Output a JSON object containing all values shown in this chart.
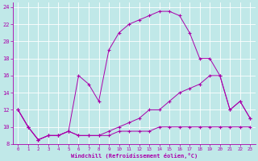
{
  "xlabel": "Windchill (Refroidissement éolien,°C)",
  "bg_color": "#c0e8e8",
  "grid_color": "#a8d8d8",
  "line_color": "#aa00aa",
  "xlim": [
    -0.5,
    23.5
  ],
  "ylim": [
    8,
    24.5
  ],
  "xticks": [
    0,
    1,
    2,
    3,
    4,
    5,
    6,
    7,
    8,
    9,
    10,
    11,
    12,
    13,
    14,
    15,
    16,
    17,
    18,
    19,
    20,
    21,
    22,
    23
  ],
  "yticks": [
    8,
    10,
    12,
    14,
    16,
    18,
    20,
    22,
    24
  ],
  "line1_x": [
    0,
    1,
    2,
    3,
    4,
    5,
    6,
    7,
    8,
    9,
    10,
    11,
    12,
    13,
    14,
    15,
    16,
    17,
    18,
    19,
    20,
    21,
    22,
    23
  ],
  "line1_y": [
    12,
    10,
    8.5,
    9,
    9,
    9.5,
    9,
    9,
    9,
    9,
    9.5,
    9.5,
    9.5,
    9.5,
    10,
    10,
    10,
    10,
    10,
    10,
    10,
    10,
    10,
    10
  ],
  "line2_x": [
    0,
    1,
    2,
    3,
    4,
    5,
    6,
    7,
    8,
    9,
    10,
    11,
    12,
    13,
    14,
    15,
    16,
    17,
    18,
    19,
    20,
    21,
    22,
    23
  ],
  "line2_y": [
    12,
    10,
    8.5,
    9,
    9,
    9.5,
    9,
    9,
    9,
    9.5,
    10,
    10.5,
    11,
    12,
    12,
    13,
    14,
    14.5,
    15,
    16,
    16,
    12,
    13,
    11
  ],
  "line3_x": [
    0,
    1,
    2,
    3,
    4,
    5,
    6,
    7,
    8,
    9,
    10,
    11,
    12,
    13,
    14,
    15,
    16,
    17,
    18,
    19,
    20,
    21,
    22,
    23
  ],
  "line3_y": [
    12,
    10,
    8.5,
    9,
    9,
    9.5,
    16,
    15,
    13,
    19,
    21,
    22,
    22.5,
    23,
    23.5,
    23.5,
    23,
    21,
    18,
    18,
    16,
    12,
    13,
    11
  ]
}
